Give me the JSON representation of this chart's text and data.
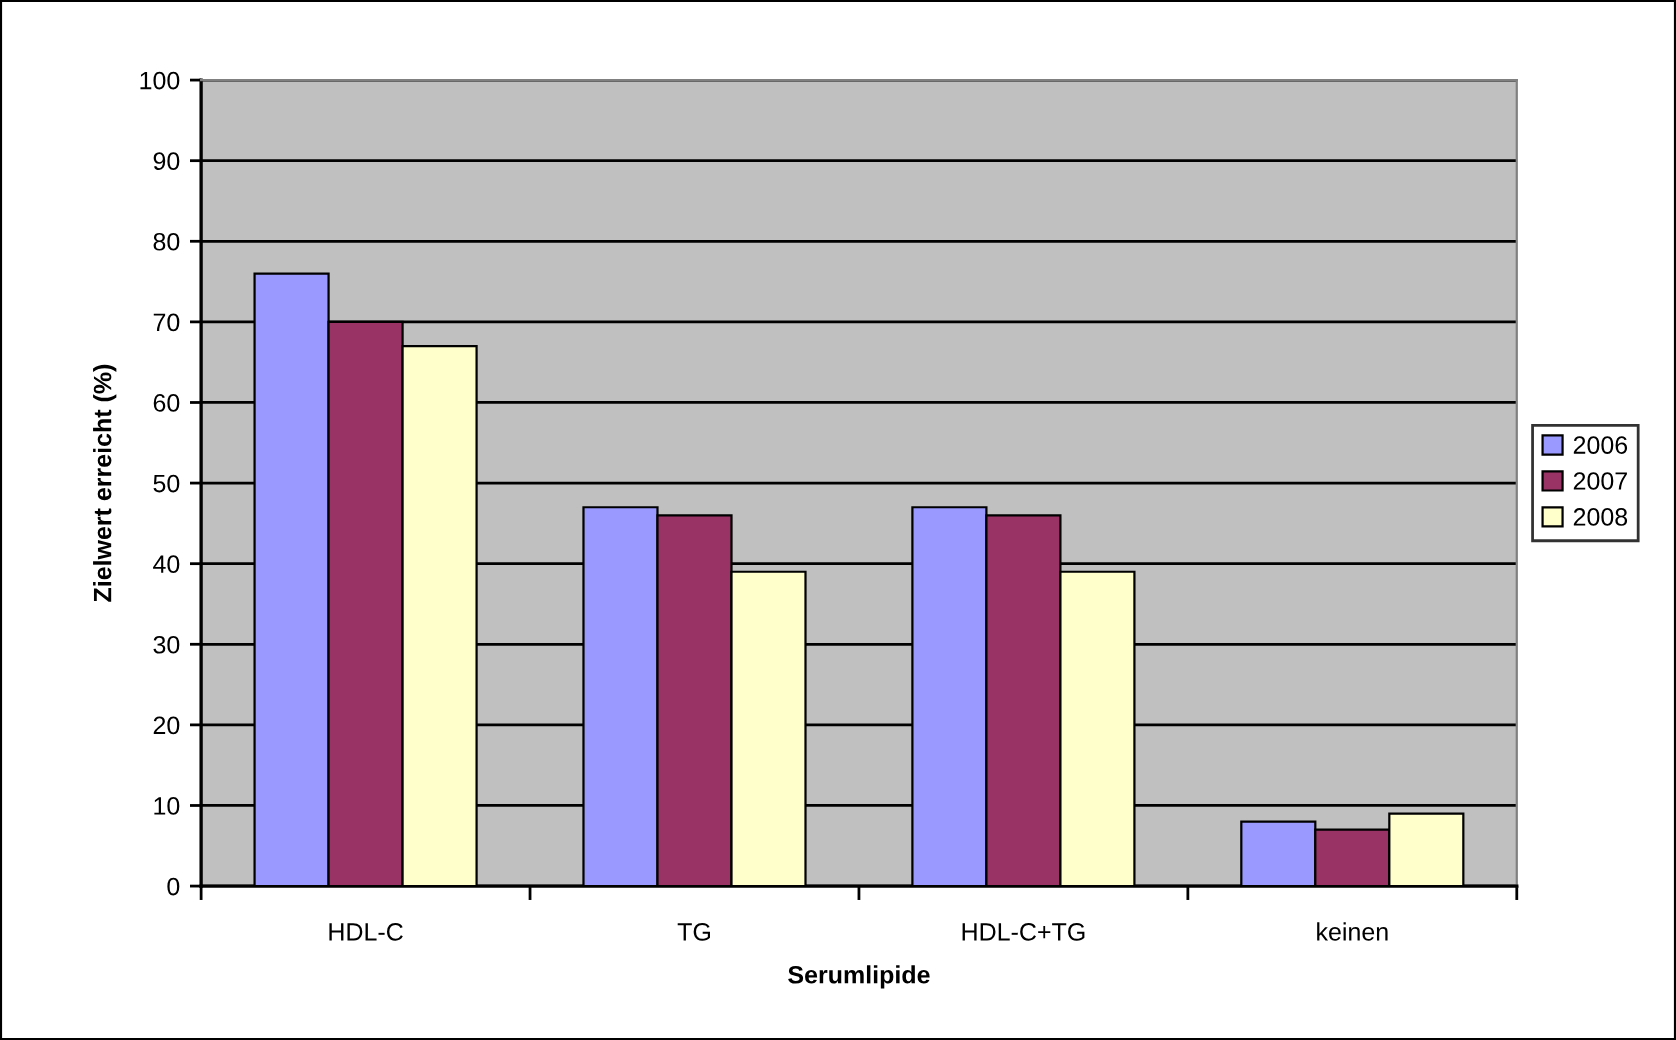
{
  "chart_data": {
    "type": "bar",
    "xlabel": "Serumlipide",
    "ylabel": "Zielwert erreicht (%)",
    "categories": [
      "HDL-C",
      "TG",
      "HDL-C+TG",
      "keinen"
    ],
    "series": [
      {
        "name": "2006",
        "color": "#9999ff",
        "values": [
          76,
          47,
          47,
          8
        ]
      },
      {
        "name": "2007",
        "color": "#993366",
        "values": [
          70,
          46,
          46,
          7
        ]
      },
      {
        "name": "2008",
        "color": "#ffffcc",
        "values": [
          67,
          39,
          39,
          9
        ]
      }
    ],
    "ylim": [
      0,
      100
    ],
    "yticks": [
      0,
      10,
      20,
      30,
      40,
      50,
      60,
      70,
      80,
      90,
      100
    ],
    "grid": "y",
    "legend": "right"
  }
}
